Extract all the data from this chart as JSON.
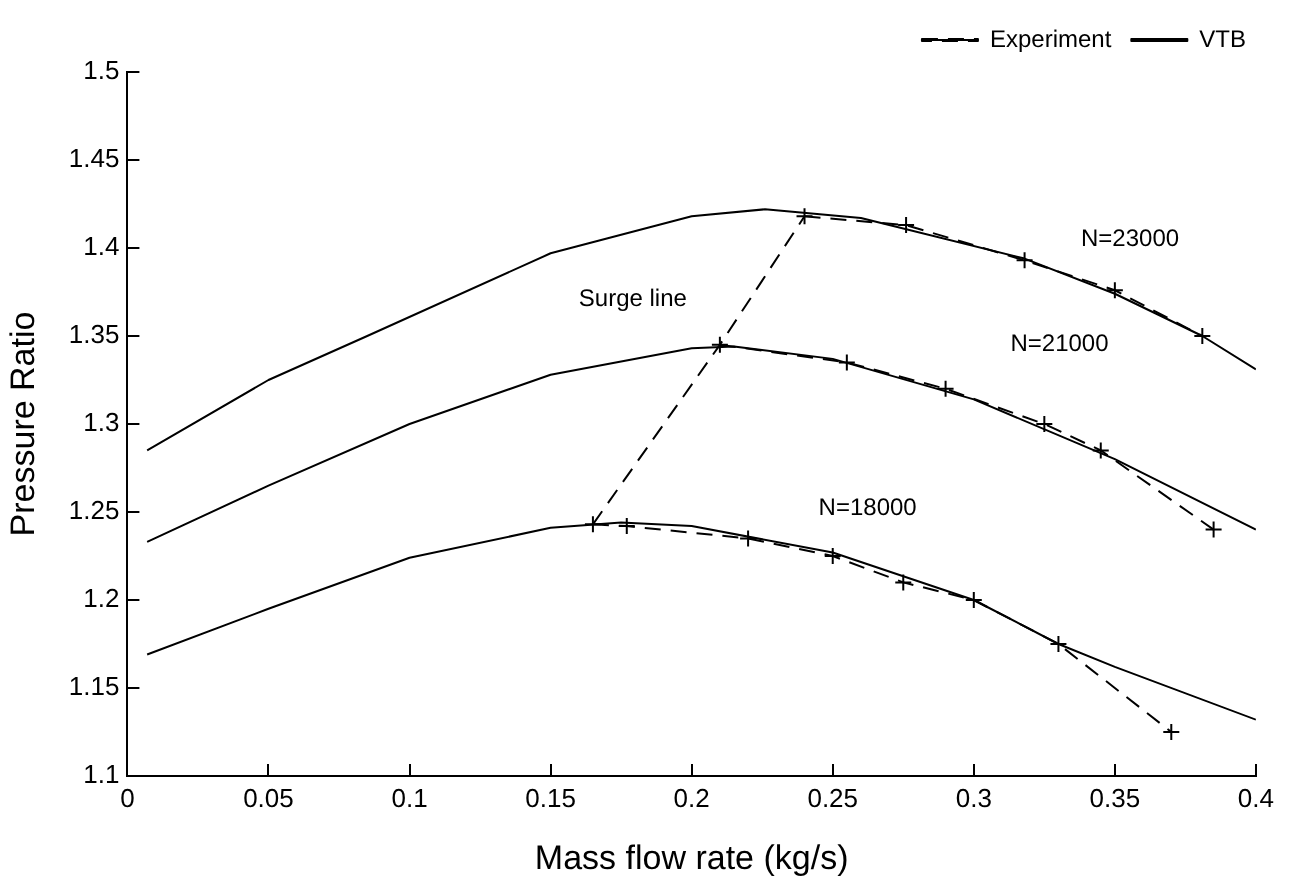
{
  "chart_data": {
    "type": "line",
    "xlabel": "Mass flow rate (kg/s)",
    "ylabel": "Pressure Ratio",
    "xlim": [
      0,
      0.4
    ],
    "xticks": [
      0,
      0.05,
      0.1,
      0.15,
      0.2,
      0.25,
      0.3,
      0.35,
      0.4
    ],
    "ylim": [
      1.1,
      1.5
    ],
    "yticks": [
      1.1,
      1.15,
      1.2,
      1.25,
      1.3,
      1.35,
      1.4,
      1.45,
      1.5
    ],
    "grid": false,
    "legend": "top right",
    "series": [
      {
        "name": "Experiment",
        "color": "#000000",
        "line_style": "dashed",
        "marker": "cross",
        "x": [
          0.24,
          0.276,
          0.318,
          0.35,
          0.381
        ],
        "values": [
          1.418,
          1.413,
          1.393,
          1.376,
          1.35
        ]
      },
      {
        "color": "#000000",
        "line_style": "dashed",
        "marker": "cross",
        "x": [
          0.21,
          0.255,
          0.29,
          0.325,
          0.345,
          0.385
        ],
        "values": [
          1.345,
          1.335,
          1.32,
          1.3,
          1.285,
          1.24
        ]
      },
      {
        "color": "#000000",
        "line_style": "dashed",
        "marker": "cross",
        "x": [
          0.165,
          0.177,
          0.22,
          0.25,
          0.275,
          0.3,
          0.33,
          0.37
        ],
        "values": [
          1.243,
          1.242,
          1.235,
          1.225,
          1.21,
          1.2,
          1.175,
          1.125
        ]
      },
      {
        "name": "VTB",
        "color": "#000000",
        "line_style": "solid",
        "marker": "none",
        "x": [
          0.007,
          0.05,
          0.085,
          0.15,
          0.2,
          0.226,
          0.26,
          0.318,
          0.35,
          0.381,
          0.4
        ],
        "values": [
          1.285,
          1.325,
          1.35,
          1.397,
          1.418,
          1.422,
          1.417,
          1.394,
          1.374,
          1.35,
          1.331
        ]
      },
      {
        "color": "#000000",
        "line_style": "solid",
        "marker": "none",
        "x": [
          0.007,
          0.05,
          0.1,
          0.15,
          0.2,
          0.215,
          0.25,
          0.3,
          0.35,
          0.4
        ],
        "values": [
          1.233,
          1.265,
          1.3,
          1.328,
          1.343,
          1.344,
          1.337,
          1.314,
          1.28,
          1.24
        ]
      },
      {
        "color": "#000000",
        "line_style": "solid",
        "marker": "none",
        "x": [
          0.007,
          0.05,
          0.1,
          0.15,
          0.175,
          0.2,
          0.25,
          0.3,
          0.33,
          0.35,
          0.4
        ],
        "values": [
          1.169,
          1.195,
          1.224,
          1.241,
          1.244,
          1.242,
          1.227,
          1.2,
          1.175,
          1.162,
          1.132
        ]
      },
      {
        "color": "#000000",
        "line_style": "dashed",
        "marker": "none",
        "x": [
          0.165,
          0.21,
          0.24
        ],
        "values": [
          1.243,
          1.345,
          1.418
        ]
      }
    ],
    "annotations": [
      "N=23000",
      "N=21000",
      "N=18000",
      "Surge line"
    ]
  }
}
